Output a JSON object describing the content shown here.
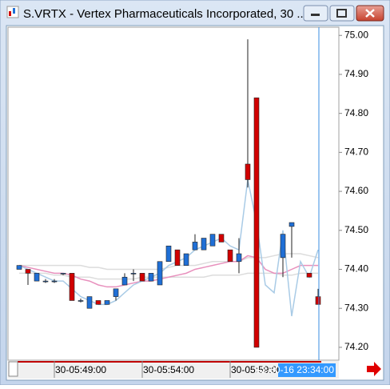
{
  "chart_data": {
    "type": "candlestick",
    "title": "S.VRTX - Vertex Pharmaceuticals Incorporated, 30 ...",
    "categories": [
      null,
      null,
      null,
      null,
      "30-05:49:00",
      null,
      null,
      null,
      null,
      null,
      null,
      null,
      null,
      null,
      "30-05:54:00",
      null,
      null,
      null,
      null,
      null,
      null,
      null,
      null,
      null,
      "30-05:59:00",
      null,
      null,
      null,
      null,
      null,
      null,
      null,
      null,
      null,
      "12-30-16 23:34:00"
    ],
    "open": [
      74.4,
      74.4,
      74.37,
      74.37,
      74.37,
      74.39,
      74.39,
      74.32,
      74.3,
      74.32,
      74.31,
      74.33,
      74.36,
      74.39,
      74.39,
      74.37,
      74.36,
      74.42,
      74.45,
      74.41,
      74.45,
      74.45,
      74.46,
      74.49,
      74.45,
      74.42,
      74.67,
      74.84,
      null,
      null,
      74.43,
      74.51,
      null,
      74.39,
      74.33
    ],
    "high": [
      74.41,
      74.4,
      74.39,
      74.375,
      74.375,
      74.39,
      74.39,
      74.325,
      74.33,
      74.32,
      74.32,
      74.35,
      74.39,
      74.4,
      74.39,
      74.39,
      74.42,
      74.46,
      74.45,
      74.44,
      74.49,
      74.48,
      74.49,
      74.49,
      74.45,
      74.48,
      74.99,
      74.84,
      null,
      null,
      74.49,
      74.52,
      null,
      74.39,
      74.35
    ],
    "low": [
      74.4,
      74.36,
      74.37,
      74.365,
      74.365,
      74.385,
      74.32,
      74.315,
      74.3,
      74.31,
      74.31,
      74.32,
      74.36,
      74.37,
      74.37,
      74.37,
      74.36,
      74.42,
      74.41,
      74.41,
      74.45,
      74.45,
      74.46,
      74.47,
      74.42,
      74.39,
      74.61,
      74.2,
      null,
      null,
      74.38,
      74.43,
      null,
      74.38,
      74.31
    ],
    "close": [
      74.41,
      74.39,
      74.39,
      74.37,
      74.37,
      74.39,
      74.32,
      74.32,
      74.33,
      74.31,
      74.32,
      74.35,
      74.38,
      74.39,
      74.37,
      74.39,
      74.42,
      74.46,
      74.41,
      74.44,
      74.47,
      74.48,
      74.49,
      74.47,
      74.42,
      74.44,
      74.63,
      74.2,
      null,
      null,
      74.49,
      74.52,
      null,
      74.38,
      74.31
    ],
    "up_color": "#1f6fd6",
    "down_color": "#d10000",
    "series": [
      {
        "color": "#dcdcdc",
        "values": [
          74.41,
          74.41,
          74.41,
          74.41,
          74.41,
          74.41,
          74.41,
          74.41,
          74.405,
          74.405,
          74.4,
          74.4,
          74.4,
          74.4,
          74.4,
          74.4,
          74.4,
          74.405,
          74.41,
          74.41,
          74.41,
          74.415,
          74.42,
          74.42,
          74.42,
          74.42,
          74.43,
          74.43,
          74.43,
          74.435,
          74.44,
          74.44,
          74.44,
          74.435,
          74.43
        ]
      },
      {
        "color": "#dcdcdc",
        "values": [
          74.39,
          74.39,
          74.39,
          74.39,
          74.385,
          74.385,
          74.38,
          74.38,
          74.38,
          74.375,
          74.375,
          74.375,
          74.375,
          74.375,
          74.38,
          74.38,
          74.38,
          74.38,
          74.38,
          74.38,
          74.38,
          74.38,
          74.385,
          74.385,
          74.385,
          74.385,
          74.39,
          74.39,
          74.39,
          74.39,
          74.385,
          74.385,
          74.39,
          74.39,
          74.39
        ]
      },
      {
        "color": "#e890bd",
        "values": [
          74.41,
          74.405,
          74.4,
          74.395,
          74.39,
          74.39,
          74.385,
          74.375,
          74.37,
          74.36,
          74.355,
          74.355,
          74.36,
          74.365,
          74.37,
          74.37,
          74.375,
          74.38,
          74.385,
          74.39,
          74.4,
          74.405,
          74.41,
          74.415,
          74.42,
          74.42,
          74.435,
          74.43,
          74.4,
          74.39,
          74.39,
          74.4,
          74.41,
          74.41,
          74.41
        ]
      },
      {
        "color": "#a9cbe6",
        "values": [
          74.41,
          74.4,
          74.39,
          74.38,
          74.37,
          74.37,
          74.35,
          74.33,
          74.32,
          74.31,
          74.31,
          74.32,
          74.34,
          74.36,
          74.37,
          74.38,
          74.39,
          74.41,
          74.42,
          74.43,
          74.45,
          74.46,
          74.47,
          74.48,
          74.46,
          74.45,
          74.63,
          74.52,
          74.36,
          74.34,
          74.5,
          74.28,
          74.42,
          74.38,
          74.45
        ]
      }
    ],
    "ylim": [
      74.167,
      75.021
    ],
    "yticks": [
      {
        "value": 74.2,
        "label": "74.20"
      },
      {
        "value": 74.3,
        "label": "74.30"
      },
      {
        "value": 74.4,
        "label": "74.40"
      },
      {
        "value": 74.5,
        "label": "74.50"
      },
      {
        "value": 74.6,
        "label": "74.60"
      },
      {
        "value": 74.7,
        "label": "74.70"
      },
      {
        "value": 74.8,
        "label": "74.80"
      },
      {
        "value": 74.9,
        "label": "74.90"
      },
      {
        "value": 75,
        "label": "75.00"
      }
    ],
    "cursor_line": true,
    "grid": false
  }
}
